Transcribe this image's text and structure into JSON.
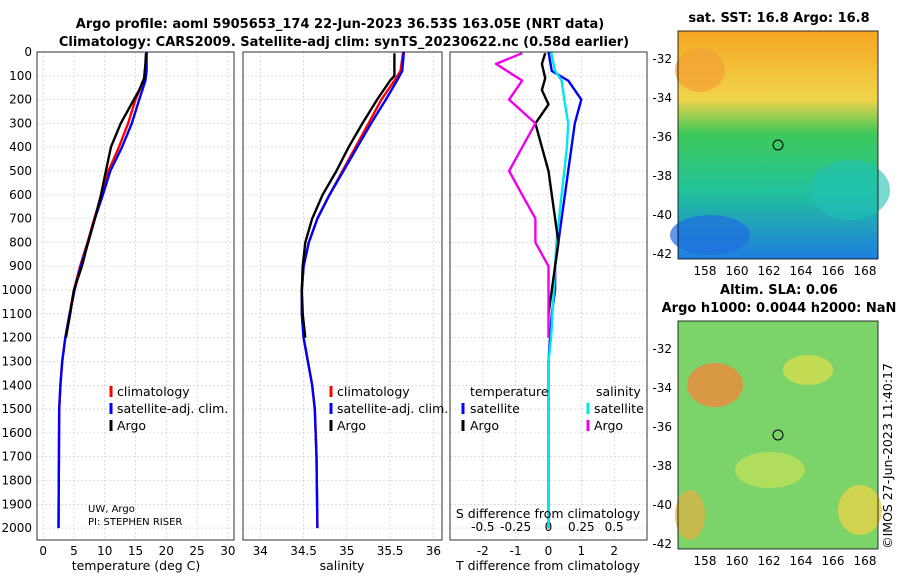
{
  "header": {
    "title_line1": "Argo profile: aoml 5905653_174 22-Jun-2023 36.53S 163.05E (NRT data)",
    "title_line2": "Climatology: CARS2009. Satellite-adj clim: synTS_20230622.nc (0.58d earlier)"
  },
  "colors": {
    "climatology": "#ff0000",
    "satellite_adj": "#0000ff",
    "argo": "#000000",
    "sat_salinity": "#00e5ee",
    "argo_salinity": "#ee00ee"
  },
  "chart_data": [
    {
      "name": "temperature-panel",
      "type": "line",
      "xlabel": "temperature (deg C)",
      "xlim": [
        -1,
        31
      ],
      "ylim": [
        2050,
        0
      ],
      "xticks": [
        "0",
        "5",
        "10",
        "15",
        "20",
        "25",
        "30"
      ],
      "yticks": [
        "0",
        "100",
        "200",
        "300",
        "400",
        "500",
        "600",
        "700",
        "800",
        "900",
        "1000",
        "1100",
        "1200",
        "1300",
        "1400",
        "1500",
        "1600",
        "1700",
        "1800",
        "1900",
        "2000"
      ],
      "legend": [
        "climatology",
        "satellite-adj. clim.",
        "Argo"
      ],
      "note_line1": "UW, Argo",
      "note_line2": "PI: STEPHEN RISER",
      "series": [
        {
          "name": "climatology",
          "color": "#ff0000",
          "x": [
            16.8,
            16.7,
            16.3,
            15.0,
            13.8,
            12.3,
            10.6,
            9.5,
            8.3,
            7.2,
            6.0,
            5.0,
            4.3,
            3.6,
            3.1,
            2.8,
            2.6,
            2.5
          ],
          "y": [
            0,
            80,
            120,
            200,
            300,
            400,
            500,
            600,
            700,
            800,
            900,
            1000,
            1100,
            1200,
            1300,
            1400,
            1500,
            2000
          ]
        },
        {
          "name": "satellite-adj. clim.",
          "color": "#0000ff",
          "x": [
            16.8,
            16.8,
            16.6,
            15.6,
            14.4,
            12.8,
            10.9,
            9.7,
            8.4,
            7.3,
            6.1,
            5.1,
            4.3,
            3.6,
            3.1,
            2.8,
            2.6,
            2.5
          ],
          "y": [
            0,
            80,
            120,
            200,
            300,
            400,
            500,
            600,
            700,
            800,
            900,
            1000,
            1100,
            1200,
            1300,
            1400,
            1500,
            2000
          ]
        },
        {
          "name": "Argo",
          "color": "#000000",
          "x": [
            16.7,
            16.6,
            16.4,
            15.6,
            14.3,
            12.6,
            11.0,
            10.2,
            9.4,
            8.4,
            7.3,
            6.3,
            5.0,
            4.4,
            3.7
          ],
          "y": [
            5,
            50,
            110,
            160,
            220,
            300,
            400,
            500,
            600,
            700,
            800,
            900,
            1000,
            1100,
            1200
          ]
        }
      ]
    },
    {
      "name": "salinity-panel",
      "type": "line",
      "xlabel": "salinity",
      "xlim": [
        33.8,
        36.1
      ],
      "ylim": [
        2050,
        0
      ],
      "xticks": [
        "34",
        "34.5",
        "35",
        "35.5",
        "36"
      ],
      "legend": [
        "climatology",
        "satellite-adj. clim.",
        "Argo"
      ],
      "series": [
        {
          "name": "climatology",
          "color": "#ff0000",
          "x": [
            35.65,
            35.62,
            35.55,
            35.4,
            35.25,
            35.1,
            34.95,
            34.8,
            34.66,
            34.56,
            34.5,
            34.48,
            34.48,
            34.5,
            34.55,
            34.6,
            34.63,
            34.65,
            34.66
          ],
          "y": [
            0,
            80,
            120,
            200,
            300,
            400,
            500,
            600,
            700,
            800,
            900,
            1000,
            1100,
            1200,
            1300,
            1400,
            1500,
            1700,
            2000
          ]
        },
        {
          "name": "satellite-adj. clim.",
          "color": "#0000ff",
          "x": [
            35.66,
            35.64,
            35.58,
            35.45,
            35.28,
            35.12,
            34.96,
            34.8,
            34.66,
            34.56,
            34.5,
            34.48,
            34.48,
            34.5,
            34.55,
            34.6,
            34.63,
            34.65,
            34.66
          ],
          "y": [
            0,
            80,
            120,
            200,
            300,
            400,
            500,
            600,
            700,
            800,
            900,
            1000,
            1100,
            1200,
            1300,
            1400,
            1500,
            1700,
            2000
          ]
        },
        {
          "name": "Argo",
          "color": "#000000",
          "x": [
            35.55,
            35.55,
            35.5,
            35.35,
            35.18,
            35.02,
            34.88,
            34.72,
            34.6,
            34.52,
            34.49,
            34.48,
            34.49,
            34.52
          ],
          "y": [
            5,
            100,
            120,
            200,
            300,
            400,
            500,
            600,
            700,
            800,
            900,
            1000,
            1100,
            1200
          ]
        }
      ]
    },
    {
      "name": "difference-panel",
      "type": "line",
      "xlabel": "T difference from climatology",
      "xlabel_top": "S difference from climatology",
      "xlim": [
        -3,
        3
      ],
      "ylim": [
        2050,
        0
      ],
      "xticks": [
        "-2",
        "-1",
        "0",
        "1",
        "2"
      ],
      "sticks": [
        "-0.5",
        "-0.25",
        "0",
        "0.25",
        "0.5"
      ],
      "legend_temperature": "temperature",
      "legend_salinity": "salinity",
      "legend_entries": [
        "satellite",
        "Argo",
        "satellite",
        "Argo"
      ],
      "series": [
        {
          "name": "T satellite",
          "color": "#0000ff",
          "x": [
            0.0,
            0.1,
            0.6,
            1.0,
            0.8,
            0.7,
            0.6,
            0.5,
            0.4,
            0.3,
            0.2,
            0.2,
            0.1,
            0.05,
            0.0,
            0.0,
            0.0,
            0.0
          ],
          "y": [
            0,
            80,
            120,
            200,
            300,
            400,
            500,
            600,
            700,
            800,
            900,
            1000,
            1100,
            1200,
            1300,
            1400,
            1500,
            2000
          ]
        },
        {
          "name": "S satellite",
          "color": "#00e5ee",
          "x": [
            0.02,
            0.05,
            0.1,
            0.12,
            0.15,
            0.14,
            0.12,
            0.1,
            0.08,
            0.06,
            0.05,
            0.04,
            0.03,
            0.02,
            0.0,
            0.0
          ],
          "y": [
            0,
            80,
            120,
            200,
            300,
            400,
            500,
            600,
            700,
            800,
            900,
            1000,
            1100,
            1200,
            1300,
            2000
          ]
        },
        {
          "name": "T Argo",
          "color": "#000000",
          "x": [
            -0.1,
            -0.2,
            -0.1,
            -0.2,
            0.0,
            -0.4,
            -0.2,
            0.0,
            0.1,
            0.2,
            0.3,
            0.2,
            0.1,
            0.0
          ],
          "y": [
            5,
            50,
            110,
            160,
            220,
            300,
            400,
            500,
            600,
            700,
            800,
            900,
            1000,
            1100
          ]
        },
        {
          "name": "S Argo",
          "color": "#ee00ee",
          "x": [
            -0.2,
            -0.4,
            -0.2,
            -0.3,
            -0.1,
            -0.2,
            -0.3,
            -0.2,
            -0.1,
            -0.1,
            0.0,
            0.0,
            0.0,
            0.0
          ],
          "y": [
            5,
            50,
            120,
            200,
            300,
            400,
            500,
            600,
            700,
            800,
            900,
            1000,
            1100,
            1200
          ]
        }
      ]
    }
  ],
  "maps": [
    {
      "title": "sat. SST: 16.8 Argo: 16.8",
      "xticks": [
        "158",
        "160",
        "162",
        "164",
        "166",
        "168"
      ],
      "yticks": [
        "-32",
        "-34",
        "-36",
        "-38",
        "-40",
        "-42"
      ]
    },
    {
      "title_line1": "Altim. SLA: 0.06",
      "title_line2": "Argo h1000: 0.0044 h2000: NaN",
      "xticks": [
        "158",
        "160",
        "162",
        "164",
        "166",
        "168"
      ],
      "yticks": [
        "-32",
        "-34",
        "-36",
        "-38",
        "-40",
        "-42"
      ]
    }
  ],
  "footer": {
    "credit": "©IMOS 27-Jun-2023 11:40:17"
  }
}
